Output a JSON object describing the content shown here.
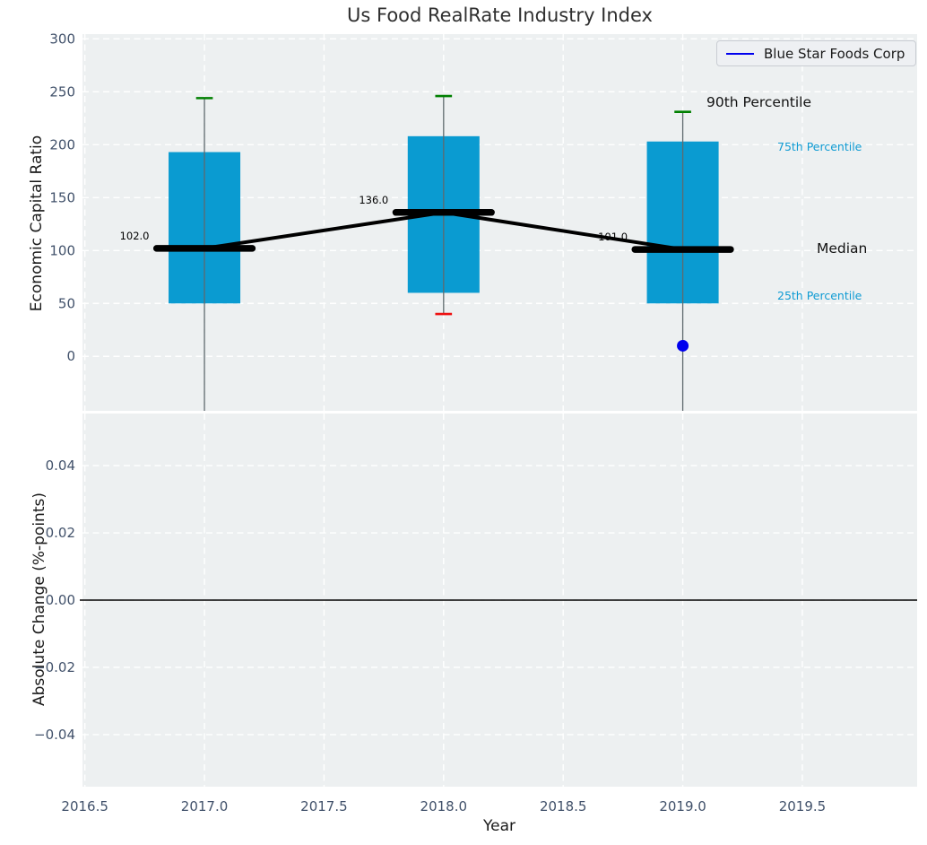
{
  "chart_data": {
    "type": "boxplot",
    "title": "Us Food RealRate Industry Index",
    "xlabel": "Year",
    "xlim": [
      2016.49,
      2019.98
    ],
    "xticks": [
      {
        "value": 2016.5,
        "label": "2016.5"
      },
      {
        "value": 2017.0,
        "label": "2017.0"
      },
      {
        "value": 2017.5,
        "label": "2017.5"
      },
      {
        "value": 2018.0,
        "label": "2018.0"
      },
      {
        "value": 2018.5,
        "label": "2018.5"
      },
      {
        "value": 2019.0,
        "label": "2019.0"
      },
      {
        "value": 2019.5,
        "label": "2019.5"
      }
    ],
    "legend": {
      "label": "Blue Star Foods Corp",
      "line_color": "#0000ee",
      "position": "upper right"
    },
    "top_panel": {
      "ylabel": "Economic Capital Ratio",
      "ylim": [
        -51.5,
        304.5
      ],
      "grid": true,
      "yticks": [
        {
          "value": 0,
          "label": "0"
        },
        {
          "value": 50,
          "label": "50"
        },
        {
          "value": 100,
          "label": "100"
        },
        {
          "value": 150,
          "label": "150"
        },
        {
          "value": 200,
          "label": "200"
        },
        {
          "value": 250,
          "label": "250"
        },
        {
          "value": 300,
          "label": "300"
        }
      ],
      "boxes": [
        {
          "year": 2017,
          "q1": 50,
          "q3": 193,
          "median": 102,
          "median_label": "102.0",
          "p90": 244,
          "p10": -60,
          "p10_visible": false
        },
        {
          "year": 2018,
          "q1": 60,
          "q3": 208,
          "median": 136,
          "median_label": "136.0",
          "p90": 246,
          "p10": 40,
          "p10_visible": true
        },
        {
          "year": 2019,
          "q1": 50,
          "q3": 203,
          "median": 101,
          "median_label": "101.0",
          "p90": 231,
          "p10": -60,
          "p10_visible": false
        }
      ],
      "median_line": {
        "x": [
          2017,
          2018,
          2019
        ],
        "y": [
          102,
          136,
          101
        ]
      },
      "company_series": {
        "name": "Blue Star Foods Corp",
        "points": [
          {
            "year": 2019,
            "value": 10
          }
        ]
      },
      "side_labels": {
        "p90": "90th Percentile",
        "p75": "75th Percentile",
        "median": "Median",
        "p25": "25th Percentile"
      }
    },
    "bottom_panel": {
      "ylabel": "Absolute Change (%-points)",
      "ylim": [
        -0.0555,
        0.0555
      ],
      "grid": true,
      "zero_line": 0.0,
      "yticks": [
        {
          "value": 0.04,
          "label": "0.04"
        },
        {
          "value": 0.02,
          "label": "0.02"
        },
        {
          "value": 0.0,
          "label": "0.00"
        },
        {
          "value": -0.02,
          "label": "−0.02"
        },
        {
          "value": -0.04,
          "label": "−0.04"
        }
      ]
    },
    "colors": {
      "axes_bg": "#edf0f1",
      "grid": "#ffffff",
      "box_fill": "#0a9bd1",
      "whisker": "#5f6a6e",
      "p90_cap": "#008000",
      "p10_cap": "#ee1111",
      "median": "#000000",
      "company": "#0000ee",
      "tick_text": "#42526b",
      "percentile_label": "#0f9bd3",
      "zero_line": "#000000"
    }
  }
}
